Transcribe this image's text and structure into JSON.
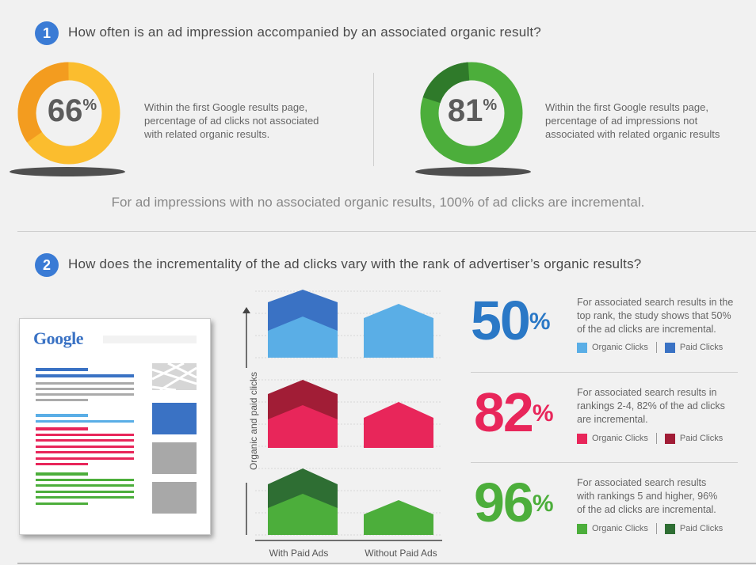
{
  "section1": {
    "number": "1",
    "question": "How often is an ad impression accompanied by an associated organic result?",
    "left_value": "66",
    "left_unit": "%",
    "left_desc_lines": [
      "Within the first Google results page,",
      "percentage of ad clicks not associated",
      "with related organic results."
    ],
    "right_value": "81",
    "right_unit": "%",
    "right_desc_lines": [
      "Within the first Google results page,",
      "percentage of ad impressions not",
      "associated with related organic results"
    ],
    "footnote": "For ad impressions with no associated organic results, 100% of ad clicks are incremental.",
    "colors": {
      "left_main": "#fbbd2e",
      "left_accent": "#f39c1f",
      "right_main": "#4cae3b",
      "right_accent": "#2f7a2a"
    }
  },
  "section2": {
    "number": "2",
    "question": "How does the incrementality of the ad clicks vary with the rank of advertiser’s organic results?",
    "logo": "Google",
    "y_axis_label": "Organic and paid clicks",
    "x_labels": [
      "With Paid Ads",
      "Without Paid Ads"
    ],
    "rows": [
      {
        "value": "50",
        "unit": "%",
        "desc_lines": [
          "For associated search results in the",
          "top rank, the study shows that 50%",
          "of the ad clicks are incremental."
        ],
        "legend_organic": "Organic Clicks",
        "legend_paid": "Paid Clicks",
        "organic_color": "#5aaee6",
        "paid_color": "#3a72c4",
        "text_color": "#2a78c6"
      },
      {
        "value": "82",
        "unit": "%",
        "desc_lines": [
          "For associated search results in",
          "rankings 2-4, 82% of the ad clicks",
          "are incremental."
        ],
        "legend_organic": "Organic Clicks",
        "legend_paid": "Paid Clicks",
        "organic_color": "#e8265a",
        "paid_color": "#a11d36",
        "text_color": "#e8265a"
      },
      {
        "value": "96",
        "unit": "%",
        "desc_lines": [
          "For associated search results",
          "with rankings 5 and higher, 96%",
          "of the ad clicks are incremental."
        ],
        "legend_organic": "Organic Clicks",
        "legend_paid": "Paid Clicks",
        "organic_color": "#4cae3b",
        "paid_color": "#2e6e33",
        "text_color": "#4cae3b"
      }
    ]
  }
}
